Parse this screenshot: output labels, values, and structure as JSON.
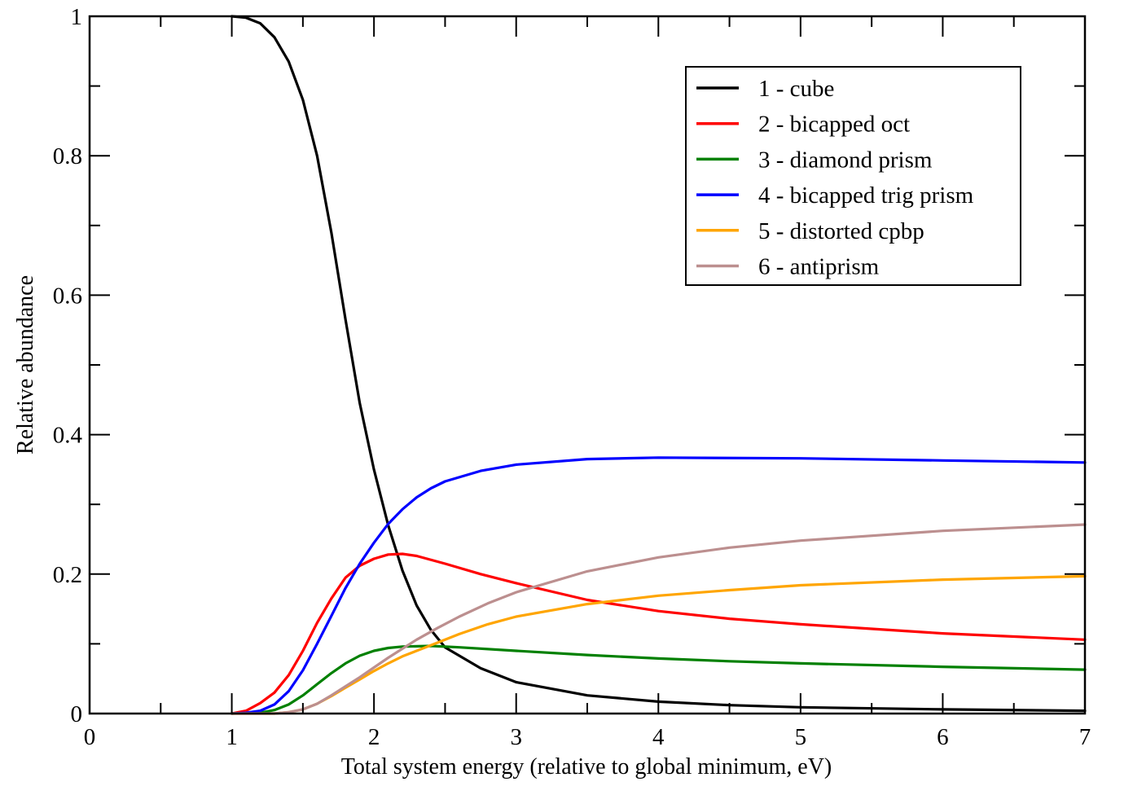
{
  "chart_data": {
    "type": "line",
    "title": "",
    "xlabel": "Total system energy (relative to global minimum, eV)",
    "ylabel": "Relative abundance",
    "xlim": [
      0,
      7
    ],
    "ylim": [
      0,
      1
    ],
    "x_major_ticks": [
      0,
      1,
      2,
      3,
      4,
      5,
      6,
      7
    ],
    "x_tick_labels": [
      "0",
      "1",
      "2",
      "3",
      "4",
      "5",
      "6",
      "7"
    ],
    "x_minor_ticks": [
      0.5,
      1.5,
      2.5,
      3.5,
      4.5,
      5.5,
      6.5
    ],
    "y_major_ticks": [
      0,
      0.2,
      0.4,
      0.6,
      0.8,
      1
    ],
    "y_tick_labels": [
      "0",
      "0.2",
      "0.4",
      "0.6",
      "0.8",
      "1"
    ],
    "y_minor_ticks": [
      0.1,
      0.3,
      0.5,
      0.7,
      0.9
    ],
    "grid": false,
    "legend_position": "top-right",
    "series": [
      {
        "name": "1 - cube",
        "color": "#000000",
        "x": [
          1.0,
          1.1,
          1.2,
          1.3,
          1.4,
          1.5,
          1.6,
          1.7,
          1.8,
          1.9,
          2.0,
          2.1,
          2.2,
          2.3,
          2.4,
          2.5,
          2.75,
          3.0,
          3.5,
          4.0,
          4.5,
          5.0,
          6.0,
          7.0
        ],
        "y": [
          1.0,
          0.998,
          0.99,
          0.97,
          0.935,
          0.88,
          0.8,
          0.69,
          0.565,
          0.445,
          0.35,
          0.27,
          0.205,
          0.155,
          0.12,
          0.095,
          0.065,
          0.045,
          0.026,
          0.017,
          0.012,
          0.009,
          0.006,
          0.004
        ]
      },
      {
        "name": "2 - bicapped oct",
        "color": "#ff0000",
        "x": [
          1.0,
          1.1,
          1.2,
          1.3,
          1.4,
          1.5,
          1.6,
          1.7,
          1.8,
          1.9,
          2.0,
          2.1,
          2.2,
          2.3,
          2.5,
          2.75,
          3.0,
          3.5,
          4.0,
          4.5,
          5.0,
          6.0,
          7.0
        ],
        "y": [
          0.0,
          0.004,
          0.015,
          0.03,
          0.055,
          0.09,
          0.13,
          0.165,
          0.195,
          0.212,
          0.222,
          0.228,
          0.229,
          0.226,
          0.215,
          0.2,
          0.187,
          0.163,
          0.147,
          0.136,
          0.128,
          0.115,
          0.106
        ]
      },
      {
        "name": "3 - diamond prism",
        "color": "#008000",
        "x": [
          1.0,
          1.2,
          1.3,
          1.4,
          1.5,
          1.6,
          1.7,
          1.8,
          1.9,
          2.0,
          2.1,
          2.2,
          2.4,
          2.6,
          3.0,
          3.5,
          4.0,
          4.5,
          5.0,
          6.0,
          7.0
        ],
        "y": [
          0.0,
          0.001,
          0.005,
          0.013,
          0.026,
          0.042,
          0.058,
          0.072,
          0.083,
          0.09,
          0.094,
          0.096,
          0.097,
          0.095,
          0.09,
          0.084,
          0.079,
          0.075,
          0.072,
          0.067,
          0.063
        ]
      },
      {
        "name": "4 - bicapped trig prism",
        "color": "#0000ff",
        "x": [
          1.0,
          1.1,
          1.2,
          1.3,
          1.4,
          1.5,
          1.6,
          1.7,
          1.8,
          1.9,
          2.0,
          2.1,
          2.2,
          2.3,
          2.4,
          2.5,
          2.75,
          3.0,
          3.5,
          4.0,
          5.0,
          6.0,
          7.0
        ],
        "y": [
          0.0,
          0.001,
          0.004,
          0.013,
          0.032,
          0.062,
          0.1,
          0.14,
          0.18,
          0.215,
          0.245,
          0.272,
          0.293,
          0.31,
          0.323,
          0.333,
          0.348,
          0.357,
          0.365,
          0.367,
          0.366,
          0.363,
          0.36
        ]
      },
      {
        "name": "5 - distorted cpbp",
        "color": "#ffa500",
        "x": [
          1.0,
          1.3,
          1.4,
          1.5,
          1.6,
          1.7,
          1.8,
          1.9,
          2.0,
          2.1,
          2.2,
          2.3,
          2.45,
          2.6,
          2.8,
          3.0,
          3.5,
          4.0,
          4.5,
          5.0,
          6.0,
          7.0
        ],
        "y": [
          0.0,
          0.0,
          0.002,
          0.006,
          0.014,
          0.025,
          0.037,
          0.049,
          0.061,
          0.072,
          0.082,
          0.09,
          0.102,
          0.114,
          0.128,
          0.139,
          0.157,
          0.169,
          0.177,
          0.184,
          0.192,
          0.197
        ]
      },
      {
        "name": "6 - antiprism",
        "color": "#bc8f8f",
        "x": [
          1.0,
          1.3,
          1.4,
          1.5,
          1.6,
          1.7,
          1.8,
          1.9,
          2.0,
          2.1,
          2.2,
          2.3,
          2.45,
          2.6,
          2.8,
          3.0,
          3.5,
          4.0,
          4.5,
          5.0,
          6.0,
          7.0
        ],
        "y": [
          0.0,
          0.0,
          0.002,
          0.006,
          0.014,
          0.026,
          0.039,
          0.052,
          0.066,
          0.08,
          0.093,
          0.106,
          0.123,
          0.139,
          0.158,
          0.174,
          0.204,
          0.224,
          0.238,
          0.248,
          0.262,
          0.271
        ]
      }
    ]
  }
}
